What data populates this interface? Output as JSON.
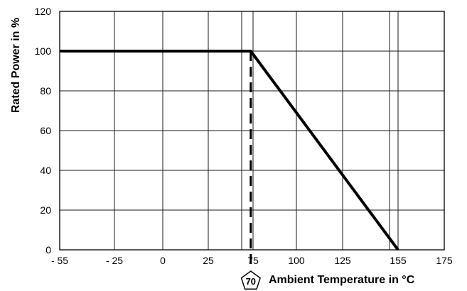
{
  "chart_data": {
    "type": "line",
    "title": "",
    "xlabel": "Ambient Temperature in °C",
    "ylabel": "Rated Power in %",
    "xlim": [
      -55,
      175
    ],
    "ylim": [
      0,
      120
    ],
    "grid": true,
    "x_ticks": [
      -55,
      -25,
      0,
      25,
      50,
      75,
      100,
      125,
      155,
      175
    ],
    "x_tick_labels": [
      "- 55",
      "- 25",
      "0",
      "25",
      "",
      "75",
      "100",
      "125",
      "155",
      "175"
    ],
    "y_ticks": [
      0,
      20,
      40,
      60,
      80,
      100,
      120
    ],
    "y_tick_labels": [
      "0",
      "20",
      "40",
      "60",
      "80",
      "100",
      "120"
    ],
    "extra_gridlines_x": [
      150
    ],
    "series": [
      {
        "x": [
          -55,
          70,
          155
        ],
        "y": [
          100,
          100,
          0
        ],
        "color": "#000000"
      }
    ],
    "annotations": [
      {
        "type": "dashed-vertical",
        "x": 70,
        "y_from": 0,
        "y_to": 100
      },
      {
        "type": "pentagon-marker",
        "x": 70,
        "text": "70"
      }
    ]
  }
}
